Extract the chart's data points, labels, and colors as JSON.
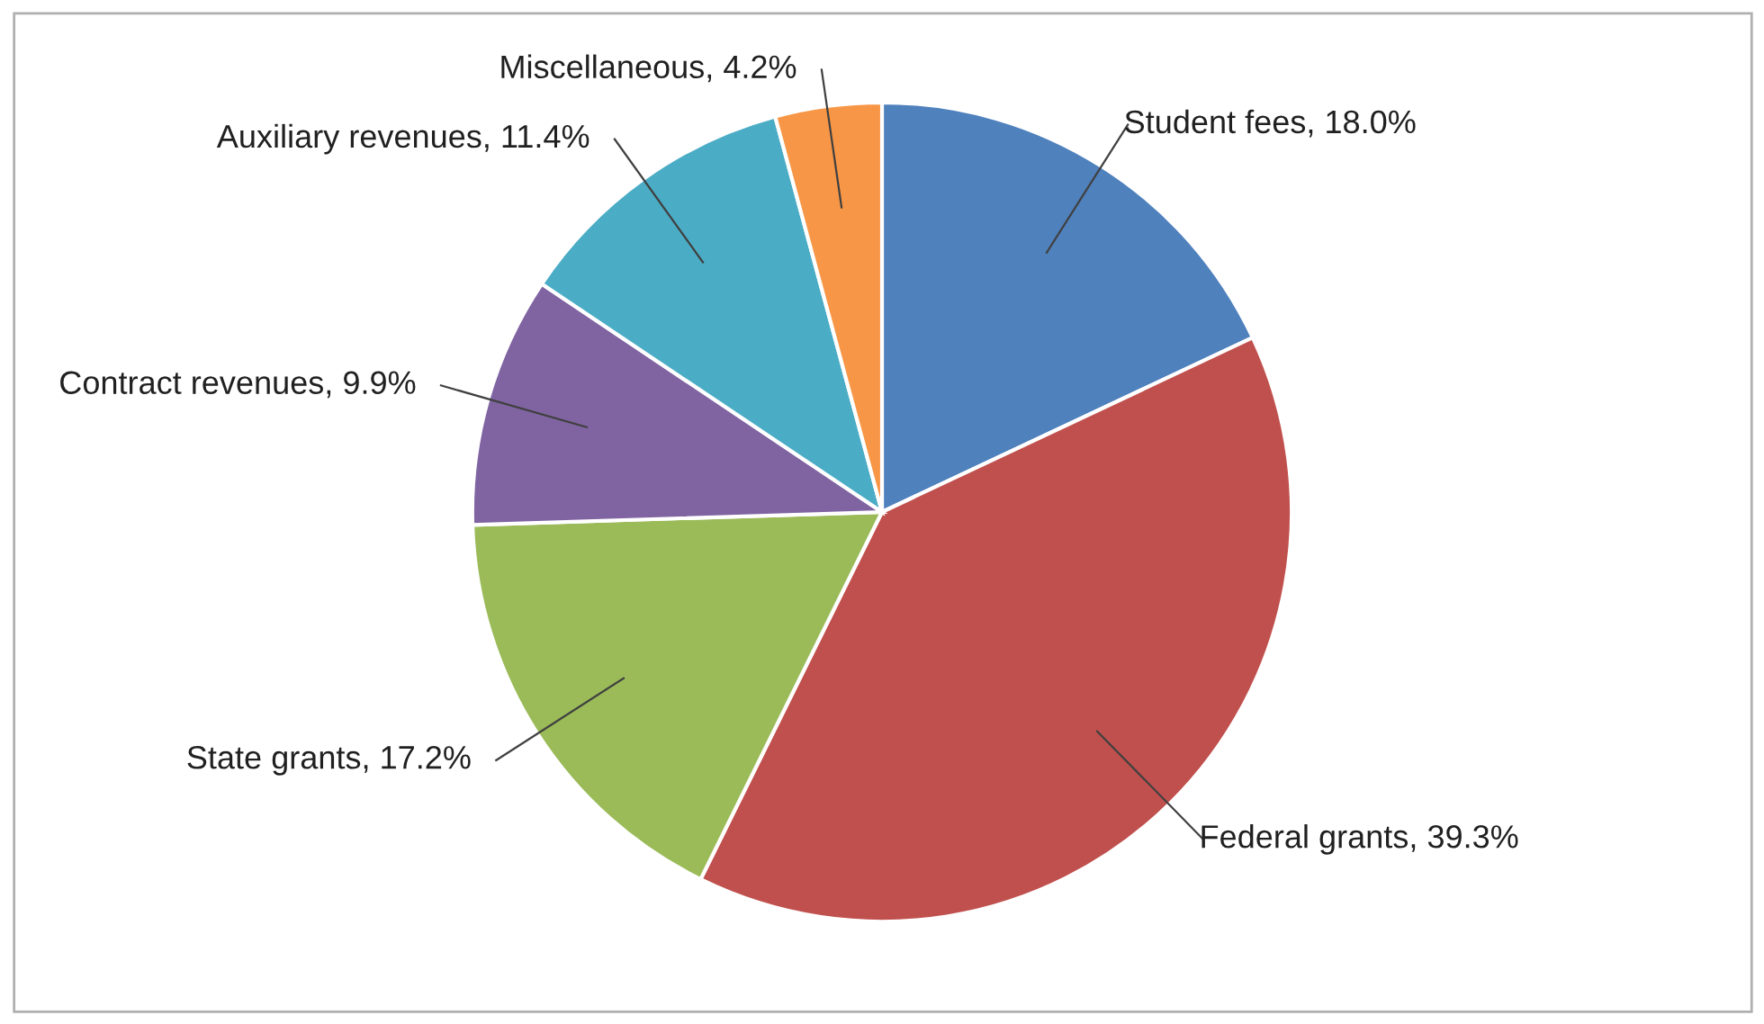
{
  "chart_data": {
    "type": "pie",
    "categories": [
      "Student fees",
      "Federal grants",
      "State grants",
      "Contract revenues",
      "Auxiliary revenues",
      "Miscellaneous"
    ],
    "values": [
      18.0,
      39.3,
      17.2,
      9.9,
      11.4,
      4.2
    ],
    "value_labels": [
      "18.0%",
      "39.3%",
      "17.2%",
      "9.9%",
      "11.4%",
      "4.2%"
    ],
    "colors": [
      "#4f81bd",
      "#c0504d",
      "#9bbb59",
      "#8064a2",
      "#4bacc6",
      "#f79646"
    ],
    "legend": false
  }
}
